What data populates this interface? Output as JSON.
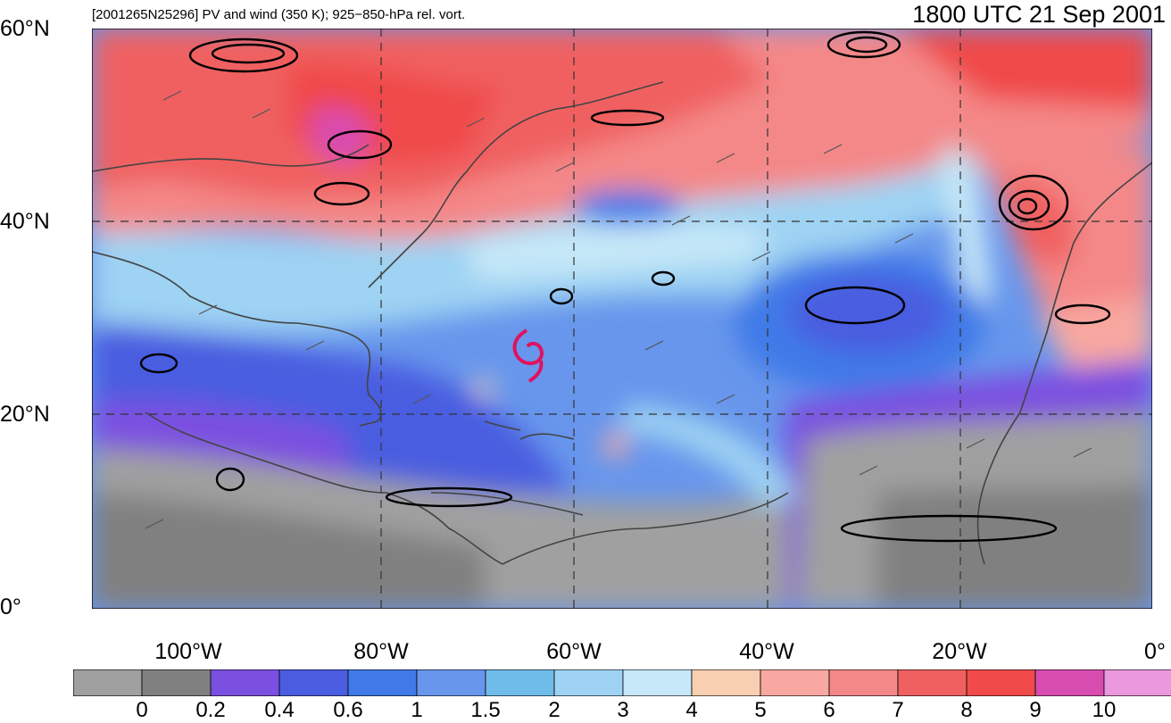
{
  "header": {
    "title": "[2001265N25296] PV and wind (350 K); 925−850-hPa rel. vort.",
    "timestamp": "1800 UTC 21 Sep 2001"
  },
  "map": {
    "lat_labels": [
      "60°N",
      "40°N",
      "20°N",
      "0°"
    ],
    "lon_labels": [
      "100°W",
      "80°W",
      "60°W",
      "40°W",
      "20°W",
      "0°"
    ],
    "storm_symbol_color": "#e0115f",
    "contour_color": "#000000",
    "coastline_color": "#444444"
  },
  "colorbar": {
    "colors": [
      "#a0a0a0",
      "#808080",
      "#7b4fe0",
      "#4a5de0",
      "#3f7ae8",
      "#6796ec",
      "#6fbcea",
      "#9ed3f3",
      "#c6e8f8",
      "#f8cfb0",
      "#f8a8a0",
      "#f48888",
      "#f06060",
      "#f04a4a",
      "#d84cb0",
      "#ec98de"
    ],
    "labels": [
      "0",
      "0.2",
      "0.4",
      "0.6",
      "1",
      "1.5",
      "2",
      "3",
      "4",
      "5",
      "6",
      "7",
      "8",
      "9",
      "10"
    ]
  }
}
